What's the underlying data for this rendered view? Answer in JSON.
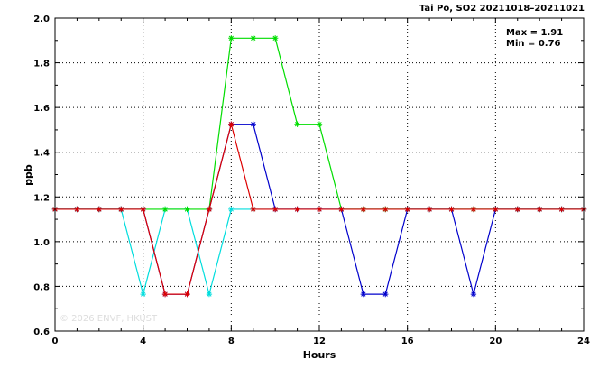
{
  "chart_data": {
    "type": "line",
    "title": "Tai Po, SO2 20211018–20211021",
    "xlabel": "Hours",
    "ylabel": "ppb",
    "xlim": [
      0,
      24
    ],
    "ylim": [
      0.6,
      2.0
    ],
    "xticks": [
      0,
      4,
      8,
      12,
      16,
      20,
      24
    ],
    "yticks": [
      0.6,
      0.8,
      1.0,
      1.2,
      1.4,
      1.6,
      1.8,
      2.0
    ],
    "ytick_labels": [
      "0.6",
      "0.8",
      "1.0",
      "1.2",
      "1.4",
      "1.6",
      "1.8",
      "2.0"
    ],
    "grid": true,
    "stats": {
      "max": "Max = 1.91",
      "min": "Min = 0.76"
    },
    "watermark": "© 2026  ENVF, HKUST",
    "x": [
      0,
      1,
      2,
      3,
      4,
      5,
      6,
      7,
      8,
      9,
      10,
      11,
      12,
      13,
      14,
      15,
      16,
      17,
      18,
      19,
      20,
      21,
      22,
      23,
      24
    ],
    "series": [
      {
        "color": "#00dddd",
        "values": [
          1.145,
          1.145,
          1.145,
          1.145,
          0.765,
          1.145,
          1.145,
          0.765,
          1.145,
          1.145,
          1.145,
          1.145,
          1.145,
          1.145,
          1.145,
          1.145,
          1.145,
          1.145,
          1.145,
          1.145,
          1.145,
          1.145,
          1.145,
          1.145,
          1.145
        ]
      },
      {
        "color": "#00dd00",
        "values": [
          1.145,
          1.145,
          1.145,
          1.145,
          1.145,
          1.145,
          1.145,
          1.145,
          1.91,
          1.91,
          1.91,
          1.525,
          1.525,
          1.145,
          1.145,
          1.145,
          1.145,
          1.145,
          1.145,
          1.145,
          1.145,
          1.145,
          1.145,
          1.145,
          1.145
        ]
      },
      {
        "color": "#0000cc",
        "values": [
          1.145,
          1.145,
          1.145,
          1.145,
          1.145,
          0.765,
          0.765,
          1.145,
          1.525,
          1.525,
          1.145,
          1.145,
          1.145,
          1.145,
          0.765,
          0.765,
          1.145,
          1.145,
          1.145,
          0.765,
          1.145,
          1.145,
          1.145,
          1.145,
          1.145
        ]
      },
      {
        "color": "#dd0000",
        "values": [
          1.145,
          1.145,
          1.145,
          1.145,
          1.145,
          0.765,
          0.765,
          1.145,
          1.525,
          1.145,
          1.145,
          1.145,
          1.145,
          1.145,
          1.145,
          1.145,
          1.145,
          1.145,
          1.145,
          1.145,
          1.145,
          1.145,
          1.145,
          1.145,
          1.145
        ]
      }
    ]
  }
}
